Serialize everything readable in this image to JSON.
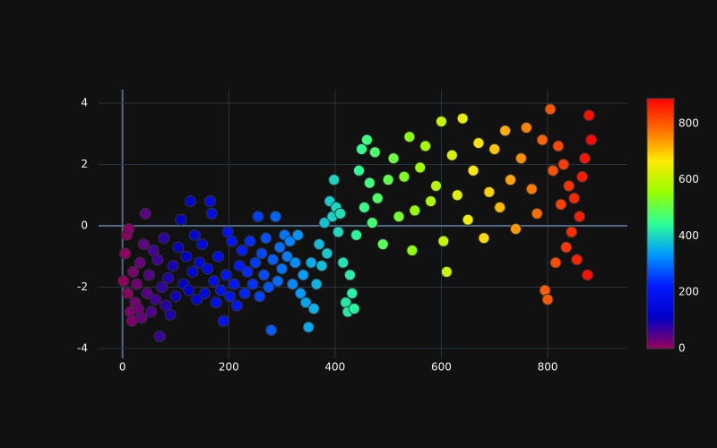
{
  "chart_data": {
    "type": "scatter",
    "x": [
      2,
      5,
      8,
      10,
      12,
      15,
      18,
      20,
      24,
      27,
      30,
      33,
      36,
      40,
      43,
      46,
      50,
      54,
      58,
      62,
      66,
      70,
      74,
      78,
      82,
      86,
      90,
      95,
      100,
      105,
      110,
      115,
      120,
      125,
      128,
      132,
      136,
      140,
      145,
      150,
      155,
      160,
      165,
      168,
      172,
      176,
      180,
      185,
      190,
      195,
      198,
      202,
      206,
      210,
      215,
      220,
      225,
      230,
      235,
      240,
      245,
      250,
      255,
      258,
      262,
      266,
      270,
      275,
      280,
      283,
      288,
      292,
      296,
      300,
      305,
      310,
      315,
      320,
      325,
      330,
      335,
      340,
      345,
      350,
      355,
      360,
      365,
      370,
      375,
      380,
      385,
      390,
      395,
      398,
      402,
      406,
      410,
      415,
      420,
      424,
      428,
      432,
      436,
      440,
      445,
      450,
      455,
      460,
      465,
      470,
      475,
      480,
      490,
      500,
      510,
      520,
      530,
      540,
      545,
      550,
      560,
      570,
      580,
      590,
      600,
      604,
      610,
      620,
      630,
      640,
      650,
      660,
      670,
      680,
      690,
      700,
      710,
      720,
      730,
      740,
      750,
      760,
      770,
      780,
      790,
      795,
      800,
      805,
      810,
      815,
      820,
      825,
      830,
      835,
      840,
      845,
      850,
      855,
      860,
      865,
      870,
      875,
      878,
      882
    ],
    "values": [
      -1.8,
      -0.9,
      -0.3,
      -2.2,
      -0.1,
      -2.8,
      -3.1,
      -1.5,
      -2.5,
      -1.9,
      -2.7,
      -1.2,
      -3.0,
      -0.6,
      0.4,
      -2.2,
      -1.6,
      -2.8,
      -0.8,
      -2.4,
      -1.1,
      -3.6,
      -2.0,
      -0.4,
      -2.6,
      -1.7,
      -2.9,
      -1.3,
      -2.3,
      -0.7,
      0.2,
      -1.9,
      -1.0,
      -2.1,
      0.8,
      -1.5,
      -0.3,
      -2.4,
      -1.2,
      -0.6,
      -2.2,
      -1.4,
      0.8,
      0.4,
      -1.8,
      -2.5,
      -1.0,
      -2.1,
      -3.1,
      -1.6,
      -0.2,
      -2.3,
      -0.5,
      -1.9,
      -2.6,
      -1.3,
      -0.8,
      -2.2,
      -1.5,
      -0.5,
      -1.9,
      -1.2,
      0.3,
      -2.3,
      -0.9,
      -1.6,
      -0.4,
      -2.0,
      -3.4,
      -1.1,
      0.3,
      -1.8,
      -0.7,
      -1.4,
      -0.3,
      -1.0,
      -0.5,
      -1.9,
      -1.2,
      -0.3,
      -2.2,
      -1.6,
      -2.5,
      -3.3,
      -1.2,
      -2.7,
      -1.9,
      -0.6,
      -1.3,
      0.1,
      -0.9,
      0.8,
      0.3,
      1.5,
      0.6,
      -0.2,
      0.4,
      -1.2,
      -2.5,
      -2.8,
      -1.6,
      -2.2,
      -2.7,
      -0.3,
      1.8,
      2.5,
      0.6,
      2.8,
      1.4,
      0.1,
      2.4,
      0.9,
      -0.6,
      1.5,
      2.2,
      0.3,
      1.6,
      2.9,
      -0.8,
      0.5,
      1.9,
      2.6,
      0.8,
      1.3,
      3.4,
      -0.5,
      -1.5,
      2.3,
      1.0,
      3.5,
      0.2,
      1.8,
      2.7,
      -0.4,
      1.1,
      2.5,
      0.6,
      3.1,
      1.5,
      -0.1,
      2.2,
      3.2,
      1.2,
      0.4,
      2.8,
      -2.1,
      -2.4,
      3.8,
      1.8,
      -1.2,
      2.6,
      0.7,
      2.0,
      -0.7,
      1.3,
      -0.2,
      0.9,
      -1.1,
      0.3,
      1.6,
      2.2,
      -1.6,
      3.6,
      2.8
    ],
    "xlim": [
      -45,
      950
    ],
    "xticks": [
      0,
      200,
      400,
      600,
      800
    ],
    "ylim": [
      -4.32,
      4.44
    ],
    "yticks": [
      -4,
      -2,
      0,
      2,
      4
    ],
    "grid": true,
    "colorscale": [
      [
        0,
        "rgb(150,0,90)"
      ],
      [
        0.125,
        "rgb(0,0,200)"
      ],
      [
        0.25,
        "rgb(0,25,255)"
      ],
      [
        0.375,
        "rgb(0,152,255)"
      ],
      [
        0.5,
        "rgb(44,255,150)"
      ],
      [
        0.625,
        "rgb(151,255,0)"
      ],
      [
        0.75,
        "rgb(255,234,0)"
      ],
      [
        0.875,
        "rgb(255,111,0)"
      ],
      [
        1,
        "rgb(255,0,0)"
      ]
    ],
    "colorbar": {
      "range": [
        0,
        889
      ],
      "ticks": [
        0,
        200,
        400,
        600,
        800
      ]
    }
  }
}
